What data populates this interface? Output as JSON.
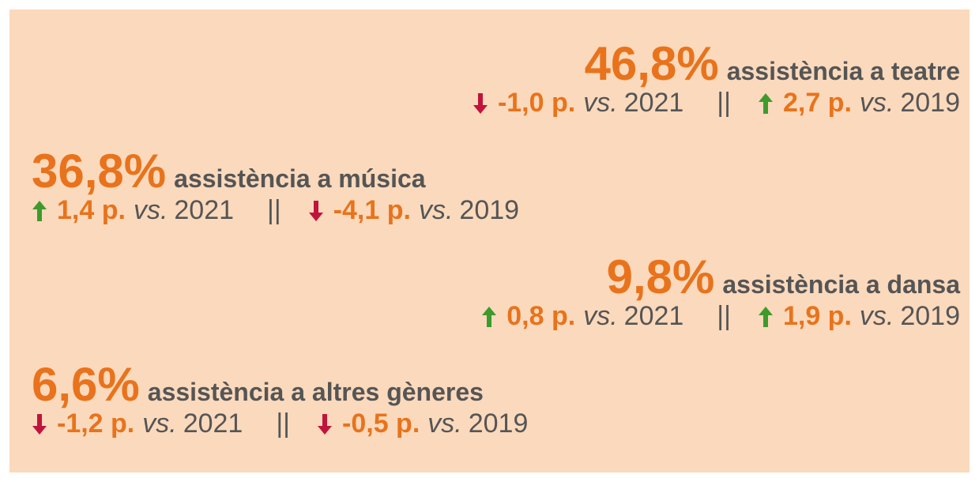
{
  "vs_label": "vs.",
  "separator": "||",
  "items": [
    {
      "align": "right",
      "percent": "46,8%",
      "label": "assistència a teatre",
      "comparisons": [
        {
          "trend": "down",
          "delta": "-1,0 p.",
          "year": "2021"
        },
        {
          "trend": "up",
          "delta": "2,7 p.",
          "year": "2019"
        }
      ]
    },
    {
      "align": "left",
      "percent": "36,8%",
      "label": "assistència a música",
      "comparisons": [
        {
          "trend": "up",
          "delta": "1,4 p.",
          "year": "2021"
        },
        {
          "trend": "down",
          "delta": "-4,1 p.",
          "year": "2019"
        }
      ]
    },
    {
      "align": "right",
      "percent": "9,8%",
      "label": "assistència a dansa",
      "comparisons": [
        {
          "trend": "up",
          "delta": "0,8 p.",
          "year": "2021"
        },
        {
          "trend": "up",
          "delta": "1,9 p.",
          "year": "2019"
        }
      ]
    },
    {
      "align": "left",
      "percent": "6,6%",
      "label": "assistència a altres gèneres",
      "comparisons": [
        {
          "trend": "down",
          "delta": "-1,2 p.",
          "year": "2021"
        },
        {
          "trend": "down",
          "delta": "-0,5 p.",
          "year": "2019"
        }
      ]
    }
  ]
}
